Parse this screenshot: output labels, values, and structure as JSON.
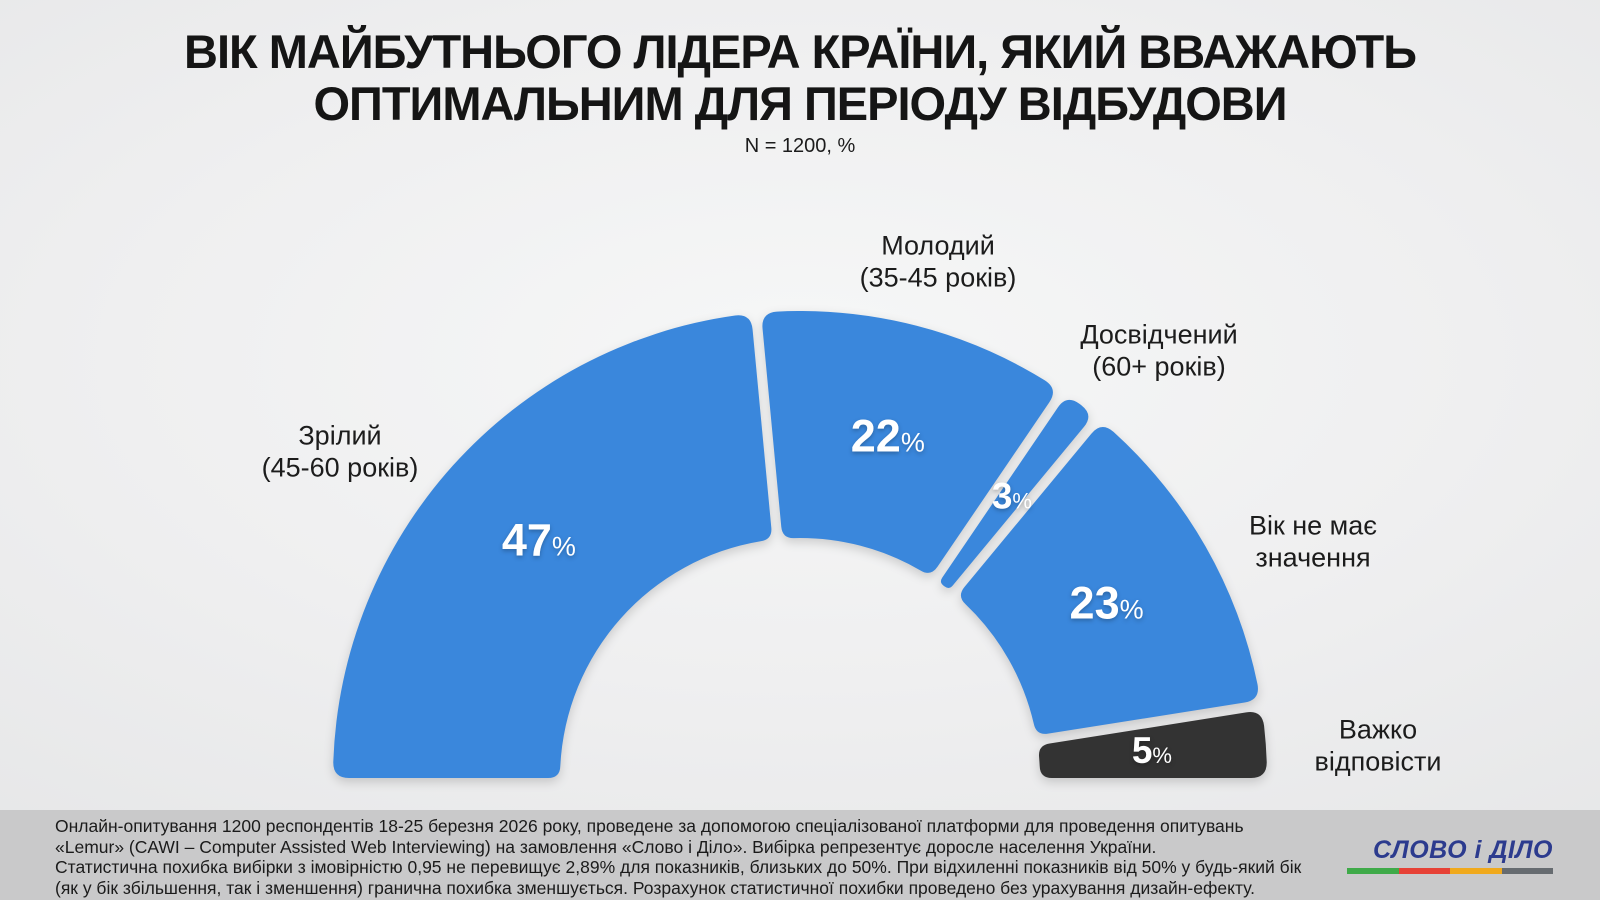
{
  "header": {
    "title_lines": [
      "ВІК МАЙБУТНЬОГО ЛІДЕРА КРАЇНИ, ЯКИЙ ВВАЖАЮТЬ",
      "ОПТИМАЛЬНИМ ДЛЯ ПЕРІОДУ ВІДБУДОВИ"
    ],
    "sample_note": "N = 1200, %"
  },
  "chart_data": {
    "type": "half-donut",
    "unit": "%",
    "start_angle_deg": 180,
    "end_angle_deg": 0,
    "total": 100,
    "accent_color": "#3a87dc",
    "neutral_color": "#333333",
    "segments": [
      {
        "label": "Зрілий",
        "sublabel": "(45-60 років)",
        "value": 47,
        "color": "#3a87dc",
        "value_color": "#ffffff"
      },
      {
        "label": "Молодий",
        "sublabel": "(35-45 років)",
        "value": 22,
        "color": "#3a87dc",
        "value_color": "#ffffff"
      },
      {
        "label": "Досвідчений",
        "sublabel": "(60+ років)",
        "value": 3,
        "color": "#3a87dc",
        "value_color": "#ffffff"
      },
      {
        "label": "Вік не має значення",
        "sublabel": "",
        "value": 23,
        "color": "#3a87dc",
        "value_color": "#ffffff"
      },
      {
        "label": "Важко відповісти",
        "sublabel": "",
        "value": 5,
        "color": "#333333",
        "value_color": "#ffffff"
      }
    ]
  },
  "footer": {
    "lines": [
      "Онлайн-опитування 1200 респондентів 18-25 березня 2026 року, проведене за допомогою спеціалізованої платформи для проведення опитувань",
      "«Lemur» (CAWI – Computer Assisted Web Interviewing) на замовлення «Слово і Діло». Вибірка репрезентує доросле населення України.",
      "Статистична похибка вибірки з імовірністю 0,95 не перевищує 2,89% для показників, близьких до 50%. При відхиленні показників від 50% у будь-який бік",
      "(як у бік збільшення, так і зменшення) гранична похибка зменшується. Розрахунок статистичної похибки проведено без урахування дизайн-ефекту."
    ],
    "logo": {
      "text": "СЛОВО і ДІЛО",
      "color": "#2c3b8e",
      "underline_colors": [
        "#3faa49",
        "#e64136",
        "#f0a91c",
        "#666b70"
      ]
    }
  }
}
